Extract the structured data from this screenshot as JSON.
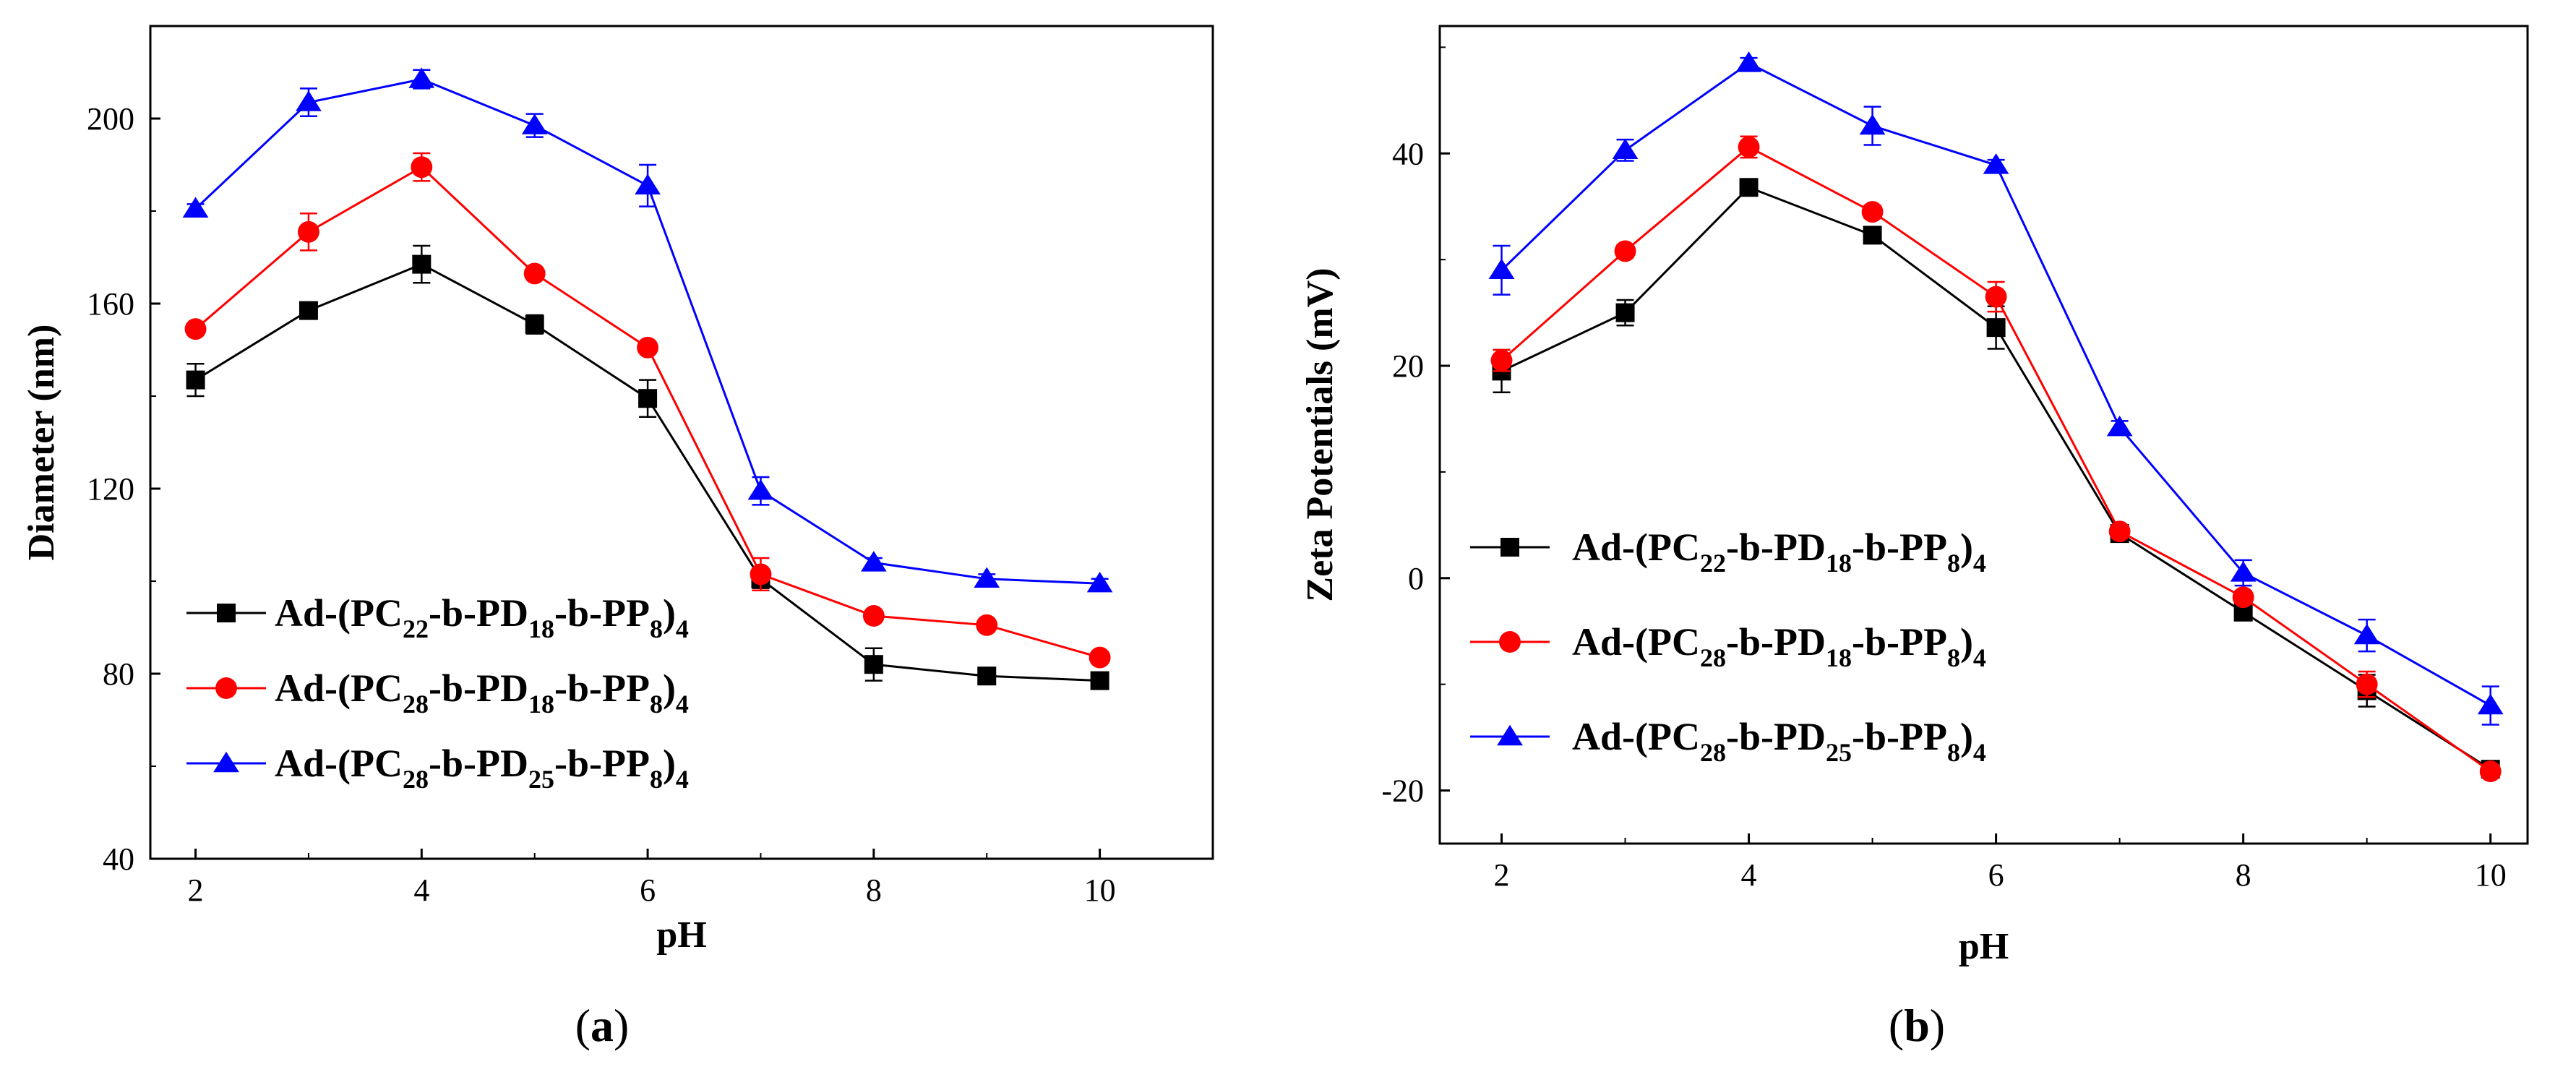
{
  "figure": {
    "captions": [
      "(a)",
      "(b)"
    ]
  },
  "legend_entries": [
    {
      "parts": [
        [
          "Ad-(PC",
          ""
        ],
        [
          "22",
          "sub"
        ],
        [
          "-b-PD",
          ""
        ],
        [
          "18",
          "sub"
        ],
        [
          "-b-PP",
          ""
        ],
        [
          "8",
          "sub"
        ],
        [
          ")",
          ""
        ],
        [
          "4",
          "sub"
        ]
      ],
      "color": "#000000",
      "marker": "square"
    },
    {
      "parts": [
        [
          "Ad-(PC",
          ""
        ],
        [
          "28",
          "sub"
        ],
        [
          "-b-PD",
          ""
        ],
        [
          "18",
          "sub"
        ],
        [
          "-b-PP",
          ""
        ],
        [
          "8",
          "sub"
        ],
        [
          ")",
          ""
        ],
        [
          "4",
          "sub"
        ]
      ],
      "color": "#ff0000",
      "marker": "circle"
    },
    {
      "parts": [
        [
          "Ad-(PC",
          ""
        ],
        [
          "28",
          "sub"
        ],
        [
          "-b-PD",
          ""
        ],
        [
          "25",
          "sub"
        ],
        [
          "-b-PP",
          ""
        ],
        [
          "8",
          "sub"
        ],
        [
          ")",
          ""
        ],
        [
          "4",
          "sub"
        ]
      ],
      "color": "#0000ff",
      "marker": "triangle"
    }
  ],
  "chart_data": [
    {
      "type": "line",
      "panel": "a",
      "caption": "(a)",
      "xlabel": "pH",
      "ylabel": "Diameter (nm)",
      "xlim": [
        1.6,
        11.0
      ],
      "ylim": [
        40,
        220
      ],
      "xticks": [
        2,
        4,
        6,
        8,
        10
      ],
      "yticks": [
        40,
        80,
        120,
        160,
        200
      ],
      "legend_position": "bottom-left",
      "x": [
        2,
        3,
        4,
        5,
        6,
        7,
        8,
        9,
        10
      ],
      "series": [
        {
          "name": "Ad-(PC22-b-PD18-b-PP8)4",
          "color": "#000000",
          "marker": "square",
          "values": [
            143.5,
            158.5,
            168.5,
            155.5,
            139.5,
            100.5,
            82,
            79.5,
            78.5
          ],
          "errors": [
            3.5,
            1.5,
            4,
            2,
            4,
            2,
            3.5,
            1,
            1
          ]
        },
        {
          "name": "Ad-(PC28-b-PD18-b-PP8)4",
          "color": "#ff0000",
          "marker": "circle",
          "values": [
            154.5,
            175.5,
            189.5,
            166.5,
            150.5,
            101.5,
            92.5,
            90.5,
            83.5
          ],
          "errors": [
            1,
            4,
            3,
            1,
            1,
            3.5,
            1,
            1,
            1
          ]
        },
        {
          "name": "Ad-(PC28-b-PD25-b-PP8)4",
          "color": "#0000ff",
          "marker": "triangle",
          "values": [
            180.5,
            203.5,
            208.5,
            198.5,
            185.5,
            119.5,
            104,
            100.5,
            99.5
          ],
          "errors": [
            1,
            3,
            2,
            2.5,
            4.5,
            3,
            1,
            1,
            1
          ]
        }
      ]
    },
    {
      "type": "line",
      "panel": "b",
      "caption": "(b)",
      "xlabel": "pH",
      "ylabel": "Zeta Potentials (mV)",
      "xlim": [
        1.5,
        10.3
      ],
      "ylim": [
        -25,
        52
      ],
      "xticks": [
        2,
        4,
        6,
        8,
        10
      ],
      "yticks": [
        -20,
        0,
        20,
        40
      ],
      "legend_position": "center-left",
      "x": [
        2,
        3,
        4,
        5,
        6,
        7,
        8,
        9,
        10
      ],
      "series": [
        {
          "name": "Ad-(PC22-b-PD18-b-PP8)4",
          "color": "#000000",
          "marker": "square",
          "values": [
            19.5,
            25,
            36.8,
            32.3,
            23.6,
            4.2,
            -3.2,
            -10.6,
            -18
          ],
          "errors": [
            2,
            1.2,
            0.6,
            0.6,
            2,
            0.5,
            0.5,
            1.5,
            0.6
          ]
        },
        {
          "name": "Ad-(PC28-b-PD18-b-PP8)4",
          "color": "#ff0000",
          "marker": "circle",
          "values": [
            20.5,
            30.8,
            40.6,
            34.5,
            26.5,
            4.4,
            -1.8,
            -10,
            -18.2
          ],
          "errors": [
            1,
            0.6,
            1,
            0.6,
            1.4,
            0.5,
            0.6,
            1.2,
            0.6
          ]
        },
        {
          "name": "Ad-(PC28-b-PD25-b-PP8)4",
          "color": "#0000ff",
          "marker": "triangle",
          "values": [
            29,
            40.3,
            48.5,
            42.6,
            38.9,
            14.2,
            0.5,
            -5.4,
            -12
          ],
          "errors": [
            2.3,
            1,
            0.5,
            1.8,
            0.5,
            0.6,
            1.2,
            1.5,
            1.8
          ]
        }
      ]
    }
  ]
}
